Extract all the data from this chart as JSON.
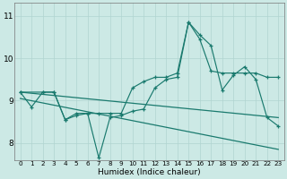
{
  "title": "",
  "xlabel": "Humidex (Indice chaleur)",
  "bg_color": "#cce9e5",
  "line_color": "#1a7a6e",
  "grid_color": "#b0d4d0",
  "xlim": [
    -0.5,
    23.5
  ],
  "ylim": [
    7.6,
    11.3
  ],
  "xticks": [
    0,
    1,
    2,
    3,
    4,
    5,
    6,
    7,
    8,
    9,
    10,
    11,
    12,
    13,
    14,
    15,
    16,
    17,
    18,
    19,
    20,
    21,
    22,
    23
  ],
  "yticks": [
    8,
    9,
    10,
    11
  ],
  "series": {
    "line1_x": [
      0,
      1,
      2,
      3,
      4,
      5,
      6,
      7,
      8,
      9,
      10,
      11,
      12,
      13,
      14,
      15,
      16,
      17,
      18,
      19,
      20,
      21,
      22,
      23
    ],
    "line1_y": [
      9.2,
      8.85,
      9.2,
      9.2,
      8.55,
      8.65,
      8.7,
      7.65,
      8.6,
      8.65,
      8.75,
      8.8,
      9.3,
      9.5,
      9.55,
      10.85,
      10.55,
      10.3,
      9.25,
      9.6,
      9.8,
      9.5,
      8.6,
      8.4
    ],
    "line2_x": [
      0,
      2,
      3,
      4,
      5,
      6,
      7,
      8,
      9,
      10,
      11,
      12,
      13,
      14,
      15,
      16,
      17,
      18,
      19,
      20,
      21,
      22,
      23
    ],
    "line2_y": [
      9.2,
      9.2,
      9.2,
      8.55,
      8.7,
      8.7,
      8.7,
      8.7,
      8.7,
      9.3,
      9.45,
      9.55,
      9.55,
      9.65,
      10.85,
      10.45,
      9.7,
      9.65,
      9.65,
      9.65,
      9.65,
      9.55,
      9.55
    ],
    "line3_x": [
      0,
      23
    ],
    "line3_y": [
      9.2,
      8.6
    ],
    "line4_x": [
      0,
      23
    ],
    "line4_y": [
      9.05,
      7.85
    ]
  }
}
